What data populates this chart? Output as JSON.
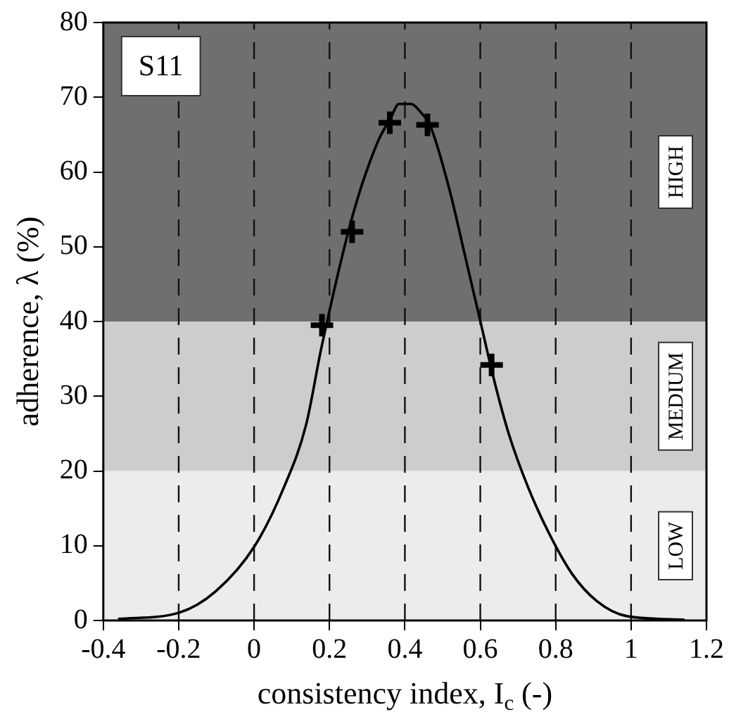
{
  "chart_data": {
    "type": "scatter",
    "xlabel": "consistency index, I$_{c}$ (-)",
    "ylabel": "adherence, λ (%)",
    "xlim": [
      -0.4,
      1.2
    ],
    "xticks": [
      -0.4,
      -0.2,
      0,
      0.2,
      0.4,
      0.6,
      0.8,
      1,
      1.2
    ],
    "ylim": [
      0,
      80
    ],
    "yticks": [
      0,
      10,
      20,
      30,
      40,
      50,
      60,
      70,
      80
    ],
    "grid": "x",
    "legend": false,
    "series": [
      {
        "type": "line",
        "color": "#000000",
        "marker": "none",
        "line_style": "solid",
        "x": [
          -0.361,
          -0.202,
          -0.102,
          0.002,
          0.079,
          0.138,
          0.179,
          0.261,
          0.326,
          0.364,
          0.384,
          0.416,
          0.442,
          0.468,
          0.52,
          0.559,
          0.598,
          0.637,
          0.676,
          0.727,
          0.779,
          0.844,
          0.909,
          0.987,
          1.142
        ],
        "values": [
          0.2,
          1.0,
          3.9,
          10.0,
          17.8,
          26.2,
          36.6,
          54.1,
          63.8,
          67.4,
          69.1,
          69.1,
          68.0,
          66.1,
          57.3,
          48.9,
          40.5,
          32.1,
          24.9,
          17.8,
          12.0,
          6.2,
          2.6,
          0.6,
          0.1
        ]
      },
      {
        "type": "scatter",
        "color": "#000000",
        "marker": "cross",
        "x": [
          0.18,
          0.26,
          0.36,
          0.46,
          0.63
        ],
        "values": [
          39.5,
          52.0,
          66.6,
          66.3,
          34.2
        ]
      }
    ],
    "bands": [
      {
        "axis": "y",
        "from": 0,
        "to": 20,
        "label": "LOW",
        "color": "#ececec"
      },
      {
        "axis": "y",
        "from": 20,
        "to": 40,
        "label": "MEDIUM",
        "color": "#cdcdcd"
      },
      {
        "axis": "y",
        "from": 40,
        "to": 80,
        "label": "HIGH",
        "color": "#6f6f6f"
      }
    ],
    "annotations": [
      "S11"
    ]
  }
}
